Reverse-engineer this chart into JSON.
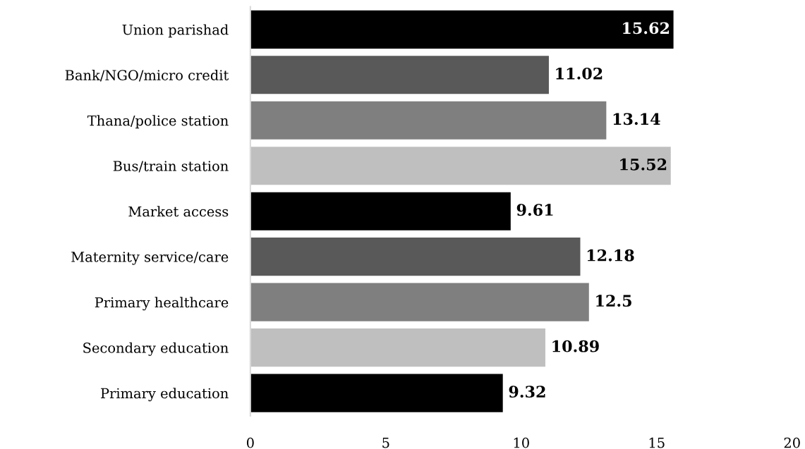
{
  "chart_data": {
    "type": "bar",
    "orientation": "horizontal",
    "categories": [
      "Union parishad",
      "Bank/NGO/micro credit",
      "Thana/police station",
      "Bus/train station",
      "Market access",
      "Maternity service/care",
      "Primary healthcare",
      "Secondary education",
      "Primary education"
    ],
    "values": [
      15.62,
      11.02,
      13.14,
      15.52,
      9.61,
      12.18,
      12.5,
      10.89,
      9.32
    ],
    "colors": [
      "#000000",
      "#595959",
      "#7f7f7f",
      "#bfbfbf",
      "#000000",
      "#595959",
      "#7f7f7f",
      "#bfbfbf",
      "#000000"
    ],
    "xlim": [
      0,
      20
    ],
    "xticks": [
      0,
      5,
      10,
      15,
      20
    ],
    "data_labels": true
  }
}
